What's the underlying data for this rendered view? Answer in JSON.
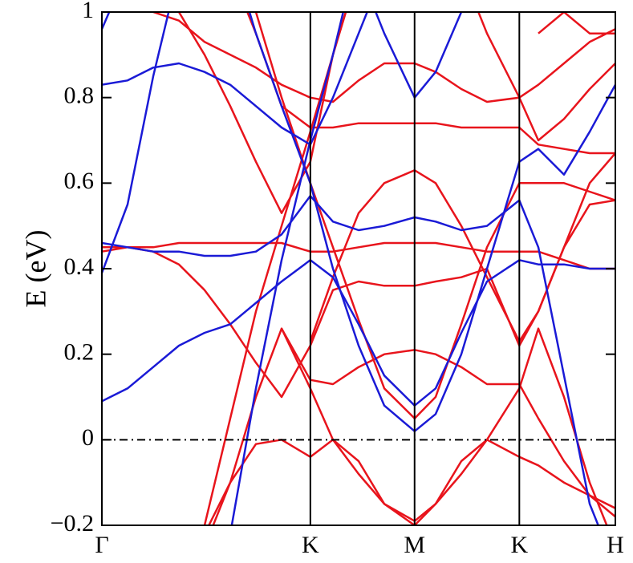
{
  "chart_data": {
    "type": "line",
    "ylabel": "E (eV)",
    "xlim": [
      0,
      1
    ],
    "xticks": [
      {
        "value": 0,
        "label": "Γ"
      },
      {
        "value": 0.406,
        "label": "K"
      },
      {
        "value": 0.609,
        "label": "M"
      },
      {
        "value": 0.813,
        "label": "K"
      },
      {
        "value": 1,
        "label": "H"
      }
    ],
    "ylim": [
      -0.2,
      1
    ],
    "yticks": [
      {
        "value": -0.2,
        "label": "−0.2"
      },
      0,
      0.2,
      0.4,
      0.6,
      0.8,
      1
    ],
    "reference_line": 0,
    "x": [
      0,
      0.05,
      0.1,
      0.15,
      0.2,
      0.25,
      0.3,
      0.35,
      0.406,
      0.45,
      0.5,
      0.55,
      0.609,
      0.65,
      0.7,
      0.75,
      0.813,
      0.85,
      0.9,
      0.95,
      1.0
    ],
    "series": [
      {
        "color": "#e8141c",
        "values": [
          0.44,
          0.45,
          0.45,
          0.46,
          0.46,
          0.46,
          0.46,
          0.46,
          0.44,
          0.44,
          0.45,
          0.46,
          0.46,
          0.46,
          0.45,
          0.44,
          0.44,
          0.44,
          0.42,
          0.4,
          0.4
        ]
      },
      {
        "color": "#e8141c",
        "values": [
          0.45,
          0.45,
          0.44,
          0.41,
          0.35,
          0.27,
          0.18,
          0.1,
          0.22,
          0.35,
          0.37,
          0.36,
          0.36,
          0.37,
          0.38,
          0.4,
          0.22,
          0.3,
          0.45,
          0.55,
          0.56
        ]
      },
      {
        "color": "#e8141c",
        "values": [
          null,
          null,
          null,
          null,
          null,
          1.1,
          0.95,
          0.78,
          0.73,
          0.73,
          0.74,
          0.74,
          0.74,
          0.74,
          0.73,
          0.73,
          0.73,
          0.69,
          0.68,
          0.67,
          0.67
        ]
      },
      {
        "color": "#e8141c",
        "values": [
          null,
          null,
          1.0,
          0.98,
          0.93,
          0.9,
          0.87,
          0.83,
          0.8,
          0.79,
          0.84,
          0.88,
          0.88,
          0.86,
          0.82,
          0.79,
          0.8,
          0.83,
          0.88,
          0.93,
          0.96
        ]
      },
      {
        "color": "#e8141c",
        "values": [
          null,
          null,
          1.1,
          1.0,
          0.9,
          0.78,
          0.65,
          0.53,
          0.65,
          0.9,
          1.1,
          null,
          null,
          null,
          null,
          null,
          null,
          null,
          null,
          null,
          null
        ]
      },
      {
        "color": "#e8141c",
        "values": [
          null,
          null,
          null,
          null,
          null,
          null,
          null,
          null,
          0.23,
          0.38,
          0.53,
          0.6,
          0.63,
          0.6,
          0.5,
          0.38,
          0.23,
          0.3,
          0.45,
          0.6,
          0.67
        ]
      },
      {
        "color": "#e8141c",
        "values": [
          null,
          null,
          null,
          null,
          null,
          null,
          null,
          0.26,
          0.14,
          0.13,
          0.17,
          0.2,
          0.21,
          0.2,
          0.17,
          0.13,
          0.13,
          0.05,
          -0.05,
          -0.13,
          -0.18
        ]
      },
      {
        "color": "#e8141c",
        "values": [
          null,
          null,
          null,
          null,
          null,
          null,
          1.0,
          0.8,
          0.6,
          0.45,
          0.28,
          0.12,
          0.05,
          0.1,
          0.27,
          0.45,
          0.6,
          0.6,
          0.6,
          0.58,
          0.56
        ]
      },
      {
        "color": "#e8141c",
        "values": [
          null,
          null,
          null,
          null,
          -0.25,
          -0.1,
          0.1,
          0.26,
          0.12,
          0.0,
          -0.08,
          -0.15,
          -0.19,
          -0.15,
          -0.08,
          0.0,
          0.12,
          0.26,
          0.1,
          -0.1,
          -0.25
        ]
      },
      {
        "color": "#e8141c",
        "values": [
          null,
          null,
          null,
          null,
          -0.22,
          -0.1,
          -0.01,
          0.0,
          -0.04,
          0.0,
          -0.05,
          -0.15,
          -0.2,
          -0.15,
          -0.05,
          0.0,
          -0.04,
          -0.06,
          -0.1,
          -0.13,
          -0.16
        ]
      },
      {
        "color": "#e8141c",
        "values": [
          null,
          null,
          null,
          null,
          -0.2,
          0.05,
          0.3,
          0.5,
          0.72,
          0.9,
          1.1,
          null,
          null,
          null,
          null,
          null,
          null,
          null,
          null,
          null,
          null
        ]
      },
      {
        "color": "#e8141c",
        "values": [
          null,
          null,
          null,
          null,
          null,
          null,
          null,
          null,
          null,
          null,
          null,
          null,
          null,
          null,
          1.1,
          0.95,
          0.8,
          0.7,
          0.75,
          0.82,
          0.88
        ]
      },
      {
        "color": "#e8141c",
        "values": [
          null,
          null,
          null,
          null,
          null,
          null,
          null,
          null,
          null,
          null,
          null,
          null,
          null,
          null,
          null,
          null,
          null,
          0.95,
          1.0,
          0.95,
          0.95
        ]
      },
      {
        "color": "#1a1ad6",
        "values": [
          0.09,
          0.12,
          0.17,
          0.22,
          0.25,
          0.27,
          0.32,
          0.37,
          0.42,
          0.38,
          0.27,
          0.15,
          0.08,
          0.12,
          0.25,
          0.37,
          0.42,
          0.41,
          0.41,
          0.4,
          0.4
        ]
      },
      {
        "color": "#1a1ad6",
        "values": [
          0.46,
          0.45,
          0.44,
          0.44,
          0.43,
          0.43,
          0.44,
          0.48,
          0.57,
          0.51,
          0.49,
          0.5,
          0.52,
          0.51,
          0.49,
          0.5,
          0.56,
          0.45,
          0.15,
          -0.15,
          -0.3
        ]
      },
      {
        "color": "#1a1ad6",
        "values": [
          0.83,
          0.84,
          0.87,
          0.88,
          0.86,
          0.83,
          0.78,
          0.73,
          0.69,
          0.8,
          0.95,
          1.1,
          null,
          null,
          null,
          null,
          null,
          null,
          null,
          null,
          null
        ]
      },
      {
        "color": "#1a1ad6",
        "values": [
          null,
          null,
          null,
          null,
          null,
          null,
          null,
          null,
          null,
          null,
          1.1,
          0.95,
          0.8,
          0.86,
          1.0,
          1.15,
          null,
          null,
          null,
          null,
          null
        ]
      },
      {
        "color": "#1a1ad6",
        "values": [
          0.39,
          0.55,
          0.85,
          1.1,
          null,
          null,
          null,
          null,
          null,
          null,
          null,
          null,
          null,
          null,
          null,
          null,
          null,
          null,
          null,
          null,
          null
        ]
      },
      {
        "color": "#1a1ad6",
        "values": [
          0.96,
          1.1,
          null,
          null,
          null,
          null,
          null,
          null,
          null,
          null,
          null,
          null,
          null,
          null,
          null,
          null,
          null,
          null,
          null,
          null,
          null
        ]
      },
      {
        "color": "#1a1ad6",
        "values": [
          null,
          null,
          null,
          null,
          null,
          -0.22,
          0.12,
          0.42,
          0.7,
          0.9,
          1.15,
          null,
          null,
          null,
          null,
          null,
          null,
          null,
          null,
          null,
          null
        ]
      },
      {
        "color": "#1a1ad6",
        "values": [
          null,
          null,
          null,
          null,
          null,
          1.15,
          0.95,
          0.78,
          0.6,
          0.4,
          0.22,
          0.08,
          0.02,
          0.06,
          0.2,
          0.4,
          0.65,
          0.68,
          0.62,
          0.72,
          0.83
        ]
      }
    ]
  }
}
